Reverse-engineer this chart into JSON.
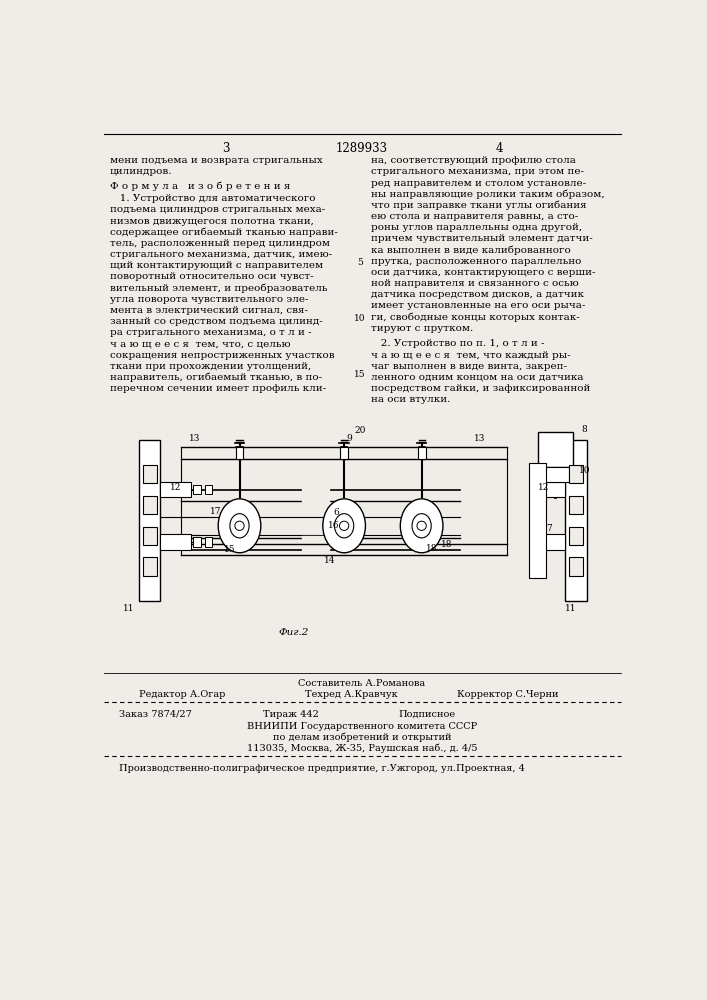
{
  "bg_color": "#f0ede8",
  "page_number_left": "3",
  "page_number_center": "1289933",
  "page_number_right": "4",
  "line_numbers": [
    5,
    10,
    15,
    20
  ],
  "text_left_col": [
    "мени подъема и возврата стригальных",
    "цилиндров."
  ],
  "formula_header": "Ф о р м у л а   и з о б р е т е н и я",
  "formula1_lines": [
    "   1. Устройство для автоматического",
    "подъема цилиндров стригальных меха-",
    "низмов движущегося полотна ткани,",
    "содержащее огибаемый тканью направи-",
    "тель, расположенный перед цилиндром",
    "стригального механизма, датчик, имею-",
    "щий контактирующий с направителем",
    "поворотный относительно оси чувст-",
    "вительный элемент, и преобразователь",
    "угла поворота чувствительного эле-",
    "мента в электрический сигнал, свя-",
    "занный со средством подъема цилинд-",
    "ра стригального механизма, о т л и -",
    "ч а ю щ е е с я  тем, что, с целью",
    "сокращения непростриженных участков",
    "ткани при прохождении утолщений,",
    "направитель, огибаемый тканью, в по-",
    "перечном сечении имеет профиль кли-"
  ],
  "text_right_col": [
    "на, соответствующий профилю стола",
    "стригального механизма, при этом пе-",
    "ред направителем и столом установле-",
    "ны направляющие ролики таким образом,",
    "что при заправке ткани углы огибания",
    "ею стола и направителя равны, а сто-",
    "роны углов параллельны одна другой,",
    "причем чувствительный элемент датчи-",
    "ка выполнен в виде калиброванного",
    "прутка, расположенного параллельно",
    "оси датчика, контактирующего с верши-",
    "ной направителя и связанного с осью",
    "датчика посредством дисков, а датчик",
    "имеет установленные на его оси рыча-",
    "ги, свободные концы которых контак-",
    "тируют с прутком."
  ],
  "formula2_lines": [
    "   2. Устройство по п. 1, о т л и -",
    "ч а ю щ е е с я  тем, что каждый ры-",
    "чаг выполнен в виде винта, закреп-",
    "ленного одним концом на оси датчика",
    "посредством гайки, и зафиксированной",
    "на оси втулки."
  ],
  "sestavitel_line": "Составитель А.Романова",
  "editor_left": "Редактор А.Огар",
  "editor_mid": "Техред А.Кравчук",
  "editor_right": "Корректор С.Черни",
  "order_left": "Заказ 7874/27",
  "order_mid": "Тираж 442",
  "order_right": "Подписное",
  "vniip_line1": "ВНИИПИ Государственного комитета СССР",
  "vniip_line2": "по делам изобретений и открытий",
  "vniip_line3": "113035, Москва, Ж-35, Раушская наб., д. 4/5",
  "production_line": "Производственно-полиграфическое предприятие, г.Ужгород, ул.Проектная, 4",
  "fig_label": "Фиг.2"
}
